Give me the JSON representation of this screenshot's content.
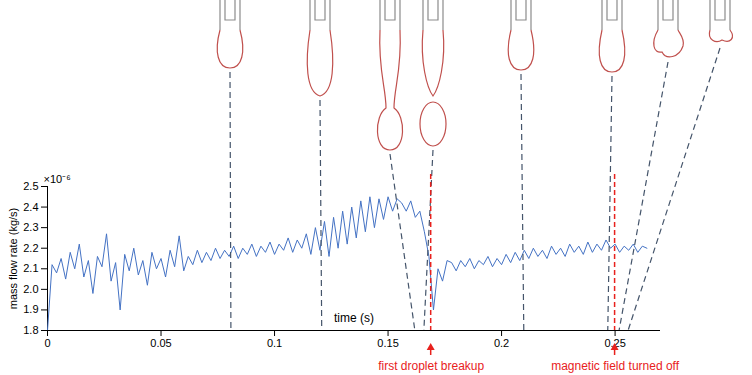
{
  "chart_data": {
    "type": "line",
    "x_label": "time (s)",
    "y_label": "mass flow rate (kg/s)",
    "y_scale_label": "×10⁻⁶",
    "color": "#4472c4",
    "xlim": [
      0,
      0.27
    ],
    "xticks": [
      0,
      0.05,
      0.1,
      0.15,
      0.2,
      0.25
    ],
    "ylim": [
      1.8,
      2.5
    ],
    "yticks": [
      1.8,
      1.9,
      {
        "value": 2,
        "label": "2.0"
      },
      2.1,
      2.2,
      2.3,
      2.4,
      2.5
    ],
    "x": [
      0,
      0.002,
      0.004,
      0.006,
      0.008,
      0.01,
      0.012,
      0.014,
      0.016,
      0.018,
      0.02,
      0.022,
      0.024,
      0.026,
      0.028,
      0.03,
      0.032,
      0.034,
      0.036,
      0.038,
      0.04,
      0.042,
      0.044,
      0.046,
      0.048,
      0.05,
      0.052,
      0.054,
      0.056,
      0.058,
      0.06,
      0.062,
      0.064,
      0.066,
      0.068,
      0.07,
      0.072,
      0.074,
      0.076,
      0.078,
      0.08,
      0.082,
      0.084,
      0.086,
      0.088,
      0.09,
      0.092,
      0.094,
      0.096,
      0.098,
      0.1,
      0.102,
      0.104,
      0.106,
      0.108,
      0.11,
      0.112,
      0.114,
      0.116,
      0.118,
      0.12,
      0.122,
      0.124,
      0.126,
      0.128,
      0.13,
      0.132,
      0.134,
      0.136,
      0.138,
      0.14,
      0.142,
      0.144,
      0.146,
      0.148,
      0.15,
      0.152,
      0.154,
      0.156,
      0.158,
      0.16,
      0.162,
      0.164,
      0.166,
      0.168,
      0.17,
      0.172,
      0.174,
      0.176,
      0.178,
      0.18,
      0.182,
      0.184,
      0.186,
      0.188,
      0.19,
      0.192,
      0.194,
      0.196,
      0.198,
      0.2,
      0.202,
      0.204,
      0.206,
      0.208,
      0.21,
      0.212,
      0.214,
      0.216,
      0.218,
      0.22,
      0.222,
      0.224,
      0.226,
      0.228,
      0.23,
      0.232,
      0.234,
      0.236,
      0.238,
      0.24,
      0.242,
      0.244,
      0.246,
      0.248,
      0.25,
      0.252,
      0.254,
      0.256,
      0.258,
      0.26,
      0.262,
      0.264
    ],
    "values": [
      1.8,
      2.12,
      2.08,
      2.15,
      2.05,
      2.18,
      2.1,
      2.22,
      2.06,
      2.14,
      1.98,
      2.16,
      2.11,
      2.27,
      2.04,
      2.13,
      1.9,
      2.17,
      2.09,
      2.2,
      2.07,
      2.14,
      2.02,
      2.18,
      2.1,
      2.15,
      2.06,
      2.19,
      2.11,
      2.26,
      2.09,
      2.16,
      2.12,
      2.19,
      2.13,
      2.18,
      2.14,
      2.2,
      2.15,
      2.19,
      2.16,
      2.21,
      2.15,
      2.2,
      2.17,
      2.22,
      2.16,
      2.21,
      2.18,
      2.23,
      2.17,
      2.22,
      2.19,
      2.25,
      2.18,
      2.24,
      2.2,
      2.27,
      2.17,
      2.3,
      2.19,
      2.33,
      2.16,
      2.35,
      2.2,
      2.38,
      2.22,
      2.4,
      2.25,
      2.43,
      2.28,
      2.45,
      2.3,
      2.44,
      2.34,
      2.45,
      2.38,
      2.44,
      2.42,
      2.38,
      2.43,
      2.35,
      2.38,
      2.28,
      2.16,
      1.9,
      2.1,
      2.04,
      2.14,
      2.13,
      2.09,
      2.14,
      2.11,
      2.15,
      2.1,
      2.14,
      2.12,
      2.16,
      2.11,
      2.15,
      2.12,
      2.17,
      2.13,
      2.18,
      2.14,
      2.19,
      2.15,
      2.2,
      2.16,
      2.19,
      2.15,
      2.21,
      2.17,
      2.2,
      2.16,
      2.22,
      2.18,
      2.21,
      2.17,
      2.23,
      2.18,
      2.22,
      2.19,
      2.24,
      2.2,
      2.22,
      2.18,
      2.21,
      2.19,
      2.22,
      2.18,
      2.21,
      2.2
    ],
    "snapshot_times": [
      0.081,
      0.121,
      0.162,
      0.166,
      0.21,
      0.247,
      0.252,
      0.256
    ],
    "annotations": [
      {
        "text": "first droplet breakup",
        "x": 0.169,
        "color": "#e8211d"
      },
      {
        "text": "magnetic field turned off",
        "x": 0.25,
        "color": "#e8211d"
      }
    ]
  }
}
